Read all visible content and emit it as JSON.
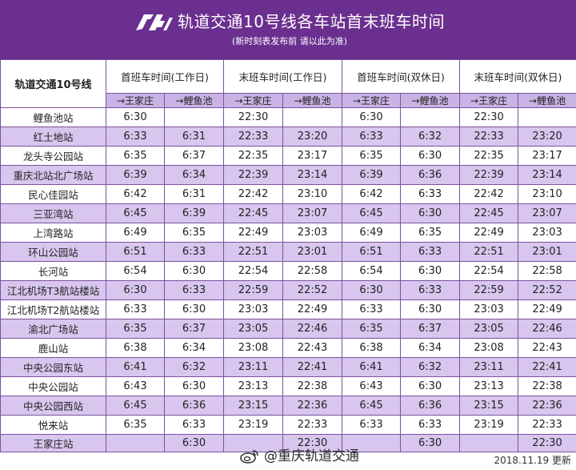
{
  "header": {
    "title": "轨道交通10号线各车站首末班车时间",
    "subtitle": "(新时刻表发布前 请以此为准)"
  },
  "colors": {
    "header_bg": "#6b2f8f",
    "row_alt": "#d8c6ee",
    "subheader": "#c9b3e4",
    "border": "#7a52a0"
  },
  "icons": {
    "logo": "crt-logo",
    "weibo": "weibo-icon"
  },
  "table": {
    "line_label": "轨道交通10号线",
    "groups": [
      "首班车时间(工作日)",
      "末班车时间(工作日)",
      "首班车时间(双休日)",
      "末班车时间(双休日)"
    ],
    "directions": [
      "→王家庄",
      "→鲤鱼池",
      "→王家庄",
      "→鲤鱼池",
      "→王家庄",
      "→鲤鱼池",
      "→王家庄",
      "→鲤鱼池"
    ],
    "rows": [
      {
        "station": "鲤鱼池站",
        "times": [
          "6:30",
          "",
          "22:30",
          "",
          "6:30",
          "",
          "22:30",
          ""
        ]
      },
      {
        "station": "红土地站",
        "times": [
          "6:33",
          "6:31",
          "22:33",
          "23:20",
          "6:33",
          "6:32",
          "22:33",
          "23:20"
        ]
      },
      {
        "station": "龙头寺公园站",
        "times": [
          "6:35",
          "6:37",
          "22:35",
          "23:17",
          "6:35",
          "6:30",
          "22:35",
          "23:17"
        ]
      },
      {
        "station": "重庆北站北广场站",
        "times": [
          "6:39",
          "6:34",
          "22:39",
          "23:14",
          "6:39",
          "6:36",
          "22:39",
          "23:14"
        ]
      },
      {
        "station": "民心佳园站",
        "times": [
          "6:42",
          "6:31",
          "22:42",
          "23:10",
          "6:42",
          "6:33",
          "22:42",
          "23:10"
        ]
      },
      {
        "station": "三亚湾站",
        "times": [
          "6:45",
          "6:39",
          "22:45",
          "23:07",
          "6:45",
          "6:30",
          "22:45",
          "23:07"
        ]
      },
      {
        "station": "上湾路站",
        "times": [
          "6:49",
          "6:35",
          "22:49",
          "23:03",
          "6:49",
          "6:35",
          "22:49",
          "23:03"
        ]
      },
      {
        "station": "环山公园站",
        "times": [
          "6:51",
          "6:33",
          "22:51",
          "23:01",
          "6:51",
          "6:33",
          "22:51",
          "23:01"
        ]
      },
      {
        "station": "长河站",
        "times": [
          "6:54",
          "6:30",
          "22:54",
          "22:58",
          "6:54",
          "6:30",
          "22:54",
          "22:58"
        ]
      },
      {
        "station": "江北机场T3航站楼站",
        "times": [
          "6:30",
          "6:33",
          "22:59",
          "22:52",
          "6:30",
          "6:33",
          "22:59",
          "22:52"
        ]
      },
      {
        "station": "江北机场T2航站楼站",
        "times": [
          "6:33",
          "6:30",
          "23:03",
          "22:49",
          "6:33",
          "6:30",
          "23:03",
          "22:49"
        ]
      },
      {
        "station": "渝北广场站",
        "times": [
          "6:35",
          "6:37",
          "23:05",
          "22:46",
          "6:35",
          "6:37",
          "23:05",
          "22:46"
        ]
      },
      {
        "station": "鹿山站",
        "times": [
          "6:38",
          "6:34",
          "23:08",
          "22:43",
          "6:38",
          "6:34",
          "23:08",
          "22:43"
        ]
      },
      {
        "station": "中央公园东站",
        "times": [
          "6:41",
          "6:32",
          "23:11",
          "22:41",
          "6:41",
          "6:32",
          "23:11",
          "22:41"
        ]
      },
      {
        "station": "中央公园站",
        "times": [
          "6:43",
          "6:30",
          "23:13",
          "22:38",
          "6:43",
          "6:30",
          "23:13",
          "22:38"
        ]
      },
      {
        "station": "中央公园西站",
        "times": [
          "6:45",
          "6:36",
          "23:15",
          "22:36",
          "6:45",
          "6:36",
          "23:15",
          "22:36"
        ]
      },
      {
        "station": "悦来站",
        "times": [
          "6:35",
          "6:33",
          "23:19",
          "22:33",
          "6:33",
          "6:33",
          "23:19",
          "22:33"
        ]
      },
      {
        "station": "王家庄站",
        "times": [
          "",
          "6:30",
          "",
          "22:30",
          "",
          "6:30",
          "",
          "22:30"
        ]
      }
    ]
  },
  "footer": {
    "watermark": "@重庆轨道交通",
    "updated": "2018.11.19 更新"
  }
}
